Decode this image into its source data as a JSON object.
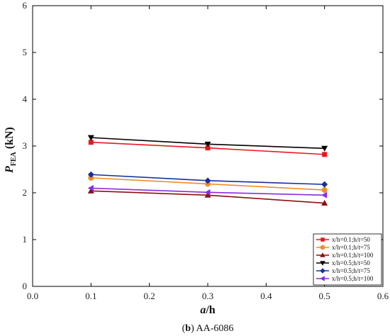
{
  "chart_data": {
    "type": "line",
    "xlabel": {
      "italic": "a",
      "rest": "/h"
    },
    "ylabel": {
      "main": "P",
      "sub": "FEA",
      "unit": " (kN)"
    },
    "xlim": [
      0.0,
      0.6
    ],
    "ylim": [
      0,
      6
    ],
    "xticks": [
      "0.0",
      "0.1",
      "0.2",
      "0.3",
      "0.4",
      "0.5",
      "0.6"
    ],
    "yticks": [
      "0",
      "1",
      "2",
      "3",
      "4",
      "5",
      "6"
    ],
    "x": [
      0.1,
      0.3,
      0.5
    ],
    "grid": false,
    "legend_position": "bottom-right",
    "series": [
      {
        "name": "x/h=0.1;h/t=50",
        "values": [
          3.08,
          2.96,
          2.82
        ],
        "color": "#e8191f",
        "marker": "square"
      },
      {
        "name": "x/h=0.1;h/t=75",
        "values": [
          2.32,
          2.19,
          2.06
        ],
        "color": "#f28c28",
        "marker": "circle"
      },
      {
        "name": "x/h=0.1;h/t=100",
        "values": [
          2.04,
          1.95,
          1.78
        ],
        "color": "#8b1010",
        "marker": "triangle-up"
      },
      {
        "name": "x/h=0.5;h/t=50",
        "values": [
          3.18,
          3.04,
          2.95
        ],
        "color": "#000000",
        "marker": "triangle-down"
      },
      {
        "name": "x/h=0.5;h/t=75",
        "values": [
          2.39,
          2.26,
          2.18
        ],
        "color": "#1530a0",
        "marker": "diamond"
      },
      {
        "name": "x/h=0.5;h/t=100",
        "values": [
          2.1,
          2.01,
          1.95
        ],
        "color": "#8a2be2",
        "marker": "triangle-left"
      }
    ]
  },
  "caption": {
    "bold": "b",
    "rest": " AA-6086"
  }
}
